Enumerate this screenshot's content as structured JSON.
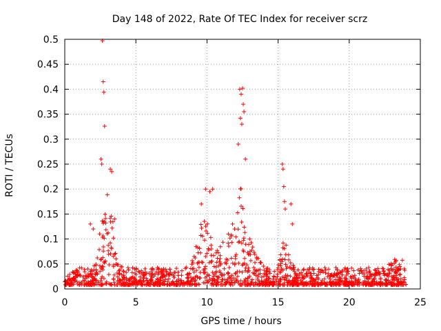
{
  "chart_data": {
    "type": "scatter",
    "title": "Day 148 of 2022, Rate Of TEC Index for receiver scrz",
    "xlabel": "GPS time / hours",
    "ylabel": "ROTI / TECUs",
    "xlim": [
      0,
      25
    ],
    "ylim": [
      0,
      0.5
    ],
    "xticks": [
      0,
      5,
      10,
      15,
      20,
      25
    ],
    "xtick_labels": [
      "0",
      "5",
      "10",
      "15",
      "20",
      "25"
    ],
    "yticks": [
      0,
      0.05,
      0.1,
      0.15,
      0.2,
      0.25,
      0.3,
      0.35,
      0.4,
      0.45,
      0.5
    ],
    "ytick_labels": [
      "0",
      "0.05",
      "0.1",
      "0.15",
      "0.2",
      "0.25",
      "0.3",
      "0.35",
      "0.4",
      "0.45",
      "0.5"
    ],
    "grid": true,
    "marker": "+",
    "color": "#ff0000",
    "series": [
      {
        "name": "ROTI",
        "x": [
          2.55,
          2.65,
          2.7,
          2.75,
          2.8,
          2.6,
          3.2,
          3.3,
          12.3,
          12.4,
          12.5,
          12.55,
          12.6,
          12.35,
          12.45,
          12.2,
          12.7,
          15.3,
          15.35,
          15.4,
          15.45,
          15.5,
          15.9,
          16.0,
          9.9,
          10.2,
          10.4,
          9.6,
          1.8,
          2.0,
          3.5,
          11.5,
          11.8,
          13.0
        ],
        "y": [
          0.26,
          0.497,
          0.415,
          0.394,
          0.326,
          0.25,
          0.24,
          0.235,
          0.4,
          0.39,
          0.402,
          0.37,
          0.355,
          0.342,
          0.33,
          0.29,
          0.26,
          0.25,
          0.24,
          0.205,
          0.175,
          0.16,
          0.17,
          0.13,
          0.2,
          0.195,
          0.2,
          0.17,
          0.13,
          0.12,
          0.14,
          0.11,
          0.13,
          0.1
        ]
      }
    ]
  }
}
